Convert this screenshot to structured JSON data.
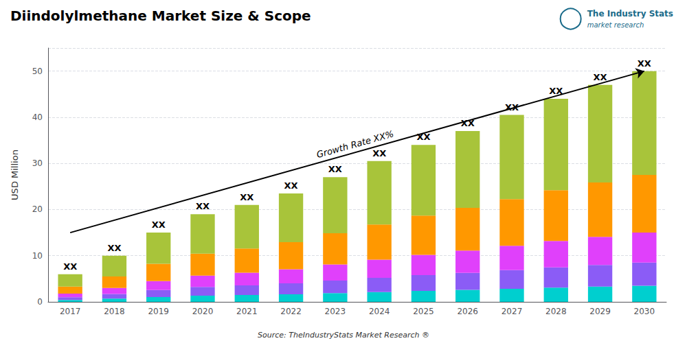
{
  "chart_data": {
    "type": "bar",
    "title": "Diindolylmethane Market Size & Scope",
    "ylabel": "USD Million",
    "stacked": true,
    "categories": [
      "2017",
      "2018",
      "2019",
      "2020",
      "2021",
      "2022",
      "2023",
      "2024",
      "2025",
      "2026",
      "2027",
      "2028",
      "2029",
      "2030"
    ],
    "series": [
      {
        "color": "#00CFCF",
        "values": [
          0.42,
          0.7,
          1.05,
          1.33,
          1.47,
          1.645,
          1.89,
          2.135,
          2.38,
          2.59,
          2.835,
          3.08,
          3.29,
          3.5
        ]
      },
      {
        "color": "#8B5CF6",
        "values": [
          0.6,
          1,
          1.5,
          1.9,
          2.1,
          2.35,
          2.7,
          3.05,
          3.4,
          3.7,
          4.05,
          4.4,
          4.7,
          5
        ]
      },
      {
        "color": "#E040FB",
        "values": [
          0.78,
          1.3,
          1.95,
          2.47,
          2.73,
          3.055,
          3.51,
          3.965,
          4.42,
          4.81,
          5.265,
          5.72,
          6.11,
          6.5
        ]
      },
      {
        "color": "#FF9800",
        "values": [
          1.5,
          2.5,
          3.75,
          4.75,
          5.25,
          5.875,
          6.75,
          7.625,
          8.5,
          9.25,
          10.125,
          11,
          11.75,
          12.5
        ]
      },
      {
        "color": "#A8C43A",
        "values": [
          2.7,
          4.5,
          6.75,
          8.55,
          9.45,
          10.575,
          12.15,
          13.725,
          15.3,
          16.65,
          18.225,
          19.8,
          21.15,
          22.5
        ]
      }
    ],
    "total_labels": [
      "XX",
      "XX",
      "XX",
      "XX",
      "XX",
      "XX",
      "XX",
      "XX",
      "XX",
      "XX",
      "XX",
      "XX",
      "XX",
      "XX"
    ],
    "annotations": [
      {
        "text": "Growth Rate XX%",
        "arrow_from": [
          2017,
          15
        ],
        "arrow_to": [
          2030,
          50
        ]
      }
    ],
    "source": "Source: TheIndustryStats Market Research ®",
    "logo": [
      "The Industry Stats",
      "market research"
    ],
    "ylim": [
      0,
      55
    ],
    "yticks": [
      0,
      10,
      20,
      30,
      40,
      50
    ],
    "grid": true
  }
}
